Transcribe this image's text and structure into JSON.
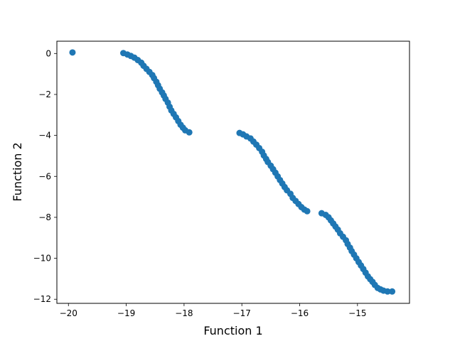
{
  "chart_data": {
    "type": "scatter",
    "title": "",
    "xlabel": "Function 1",
    "ylabel": "Function 2",
    "xlim": [
      -20.2,
      -14.1
    ],
    "ylim": [
      -12.2,
      0.6
    ],
    "xticks": [
      -20,
      -19,
      -18,
      -17,
      -16,
      -15
    ],
    "yticks": [
      0,
      -2,
      -4,
      -6,
      -8,
      -10,
      -12
    ],
    "grid": false,
    "legend": "none",
    "marker_color": "#1f77b4",
    "series": [
      {
        "values": [
          [
            -19.93,
            0.05
          ],
          [
            -19.05,
            0.02
          ],
          [
            -18.98,
            -0.05
          ],
          [
            -18.92,
            -0.12
          ],
          [
            -18.86,
            -0.2
          ],
          [
            -18.8,
            -0.32
          ],
          [
            -18.74,
            -0.45
          ],
          [
            -18.7,
            -0.6
          ],
          [
            -18.65,
            -0.75
          ],
          [
            -18.6,
            -0.9
          ],
          [
            -18.55,
            -1.05
          ],
          [
            -18.52,
            -1.2
          ],
          [
            -18.48,
            -1.38
          ],
          [
            -18.45,
            -1.55
          ],
          [
            -18.42,
            -1.72
          ],
          [
            -18.38,
            -1.9
          ],
          [
            -18.35,
            -2.05
          ],
          [
            -18.32,
            -2.22
          ],
          [
            -18.28,
            -2.4
          ],
          [
            -18.25,
            -2.6
          ],
          [
            -18.22,
            -2.78
          ],
          [
            -18.18,
            -2.95
          ],
          [
            -18.14,
            -3.12
          ],
          [
            -18.1,
            -3.3
          ],
          [
            -18.06,
            -3.48
          ],
          [
            -18.02,
            -3.62
          ],
          [
            -17.98,
            -3.75
          ],
          [
            -17.91,
            -3.85
          ],
          [
            -17.04,
            -3.88
          ],
          [
            -16.98,
            -3.95
          ],
          [
            -16.92,
            -4.05
          ],
          [
            -16.85,
            -4.15
          ],
          [
            -16.8,
            -4.3
          ],
          [
            -16.75,
            -4.45
          ],
          [
            -16.7,
            -4.62
          ],
          [
            -16.65,
            -4.8
          ],
          [
            -16.62,
            -4.98
          ],
          [
            -16.58,
            -5.15
          ],
          [
            -16.55,
            -5.3
          ],
          [
            -16.5,
            -5.48
          ],
          [
            -16.46,
            -5.65
          ],
          [
            -16.42,
            -5.82
          ],
          [
            -16.38,
            -6.0
          ],
          [
            -16.34,
            -6.18
          ],
          [
            -16.3,
            -6.35
          ],
          [
            -16.26,
            -6.52
          ],
          [
            -16.22,
            -6.68
          ],
          [
            -16.16,
            -6.85
          ],
          [
            -16.12,
            -7.05
          ],
          [
            -16.07,
            -7.2
          ],
          [
            -16.02,
            -7.35
          ],
          [
            -15.97,
            -7.5
          ],
          [
            -15.92,
            -7.62
          ],
          [
            -15.87,
            -7.7
          ],
          [
            -15.62,
            -7.8
          ],
          [
            -15.55,
            -7.88
          ],
          [
            -15.5,
            -8.0
          ],
          [
            -15.46,
            -8.15
          ],
          [
            -15.42,
            -8.3
          ],
          [
            -15.38,
            -8.45
          ],
          [
            -15.34,
            -8.6
          ],
          [
            -15.3,
            -8.78
          ],
          [
            -15.25,
            -8.95
          ],
          [
            -15.2,
            -9.12
          ],
          [
            -15.17,
            -9.3
          ],
          [
            -15.13,
            -9.48
          ],
          [
            -15.1,
            -9.65
          ],
          [
            -15.06,
            -9.82
          ],
          [
            -15.02,
            -10.0
          ],
          [
            -14.98,
            -10.18
          ],
          [
            -14.94,
            -10.35
          ],
          [
            -14.9,
            -10.52
          ],
          [
            -14.86,
            -10.7
          ],
          [
            -14.82,
            -10.88
          ],
          [
            -14.78,
            -11.02
          ],
          [
            -14.74,
            -11.15
          ],
          [
            -14.7,
            -11.3
          ],
          [
            -14.65,
            -11.45
          ],
          [
            -14.6,
            -11.52
          ],
          [
            -14.55,
            -11.58
          ],
          [
            -14.48,
            -11.62
          ],
          [
            -14.4,
            -11.62
          ]
        ]
      }
    ]
  }
}
